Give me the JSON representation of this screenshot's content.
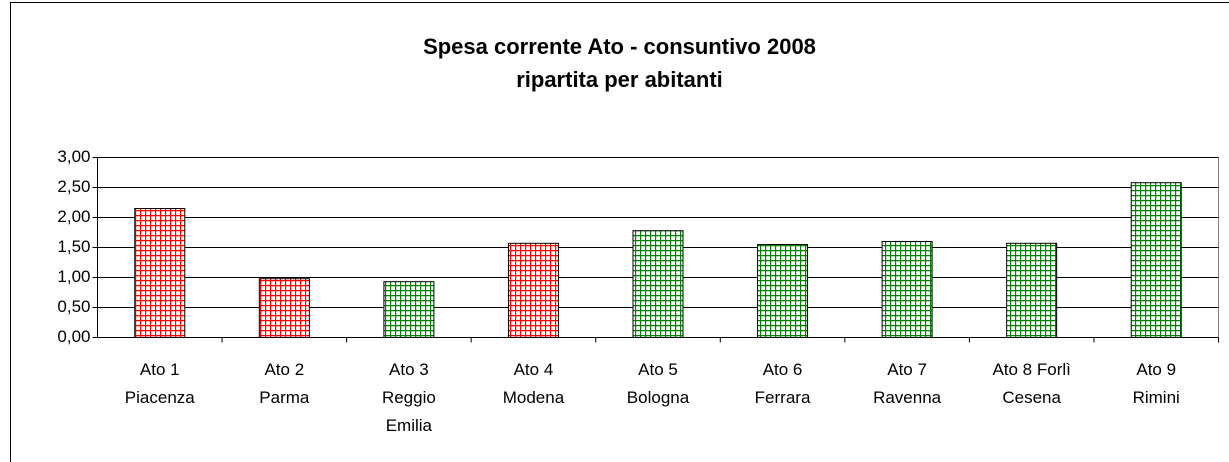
{
  "chart_data": {
    "type": "bar",
    "title": "Spesa corrente Ato - consuntivo 2008\nripartita per abitanti",
    "categories": [
      "Ato 1\nPiacenza",
      "Ato 2\nParma",
      "Ato 3\nReggio\nEmilia",
      "Ato 4\nModena",
      "Ato 5\nBologna",
      "Ato 6\nFerrara",
      "Ato 7\nRavenna",
      "Ato 8 Forlì\nCesena",
      "Ato 9\nRimini"
    ],
    "values": [
      2.15,
      0.98,
      0.93,
      1.57,
      1.78,
      1.55,
      1.6,
      1.57,
      2.58
    ],
    "colors": [
      "#ff0000",
      "#ff0000",
      "#008000",
      "#ff0000",
      "#008000",
      "#008000",
      "#008000",
      "#008000",
      "#008000"
    ],
    "ylim": [
      0,
      3
    ],
    "yticks": [
      {
        "value": 0,
        "label": "0,00"
      },
      {
        "value": 0.5,
        "label": "0,50"
      },
      {
        "value": 1,
        "label": "1,00"
      },
      {
        "value": 1.5,
        "label": "1,50"
      },
      {
        "value": 2,
        "label": "2,00"
      },
      {
        "value": 2.5,
        "label": "2,50"
      },
      {
        "value": 3,
        "label": "3,00"
      }
    ],
    "grid": true
  }
}
